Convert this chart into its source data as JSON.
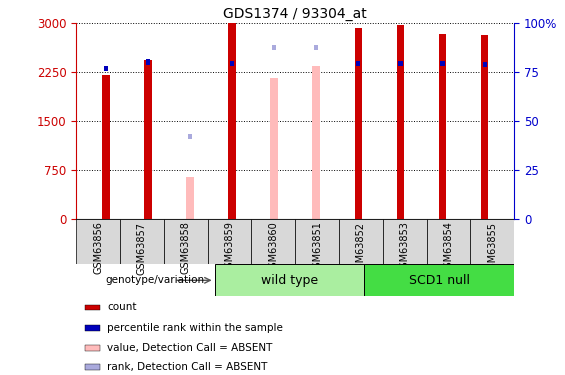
{
  "title": "GDS1374 / 93304_at",
  "samples": [
    "GSM63856",
    "GSM63857",
    "GSM63858",
    "GSM63859",
    "GSM63860",
    "GSM63851",
    "GSM63852",
    "GSM63853",
    "GSM63854",
    "GSM63855"
  ],
  "count_values": [
    2200,
    2430,
    null,
    2990,
    null,
    null,
    2920,
    2960,
    2820,
    2810
  ],
  "rank_values": [
    2300,
    2400,
    null,
    2380,
    null,
    null,
    2370,
    2370,
    2370,
    2360
  ],
  "absent_value_values": [
    null,
    null,
    640,
    null,
    2160,
    2340,
    null,
    null,
    null,
    null
  ],
  "absent_rank_values": [
    null,
    null,
    1260,
    null,
    2620,
    2620,
    null,
    null,
    null,
    null
  ],
  "ylim_left": [
    0,
    3000
  ],
  "ylim_right": [
    0,
    100
  ],
  "yticks_left": [
    0,
    750,
    1500,
    2250,
    3000
  ],
  "yticks_right": [
    0,
    25,
    50,
    75,
    100
  ],
  "left_axis_color": "#cc0000",
  "right_axis_color": "#0000cc",
  "bar_width": 0.18,
  "rank_bar_width": 0.1,
  "count_color": "#cc0000",
  "rank_color": "#0000bb",
  "absent_value_color": "#ffbbbb",
  "absent_rank_color": "#aaaadd",
  "legend_items": [
    {
      "label": "count",
      "color": "#cc0000"
    },
    {
      "label": "percentile rank within the sample",
      "color": "#0000bb"
    },
    {
      "label": "value, Detection Call = ABSENT",
      "color": "#ffbbbb"
    },
    {
      "label": "rank, Detection Call = ABSENT",
      "color": "#aaaadd"
    }
  ],
  "wt_color": "#aaeea0",
  "scd1_color": "#44dd44",
  "wt_label": "wild type",
  "scd1_label": "SCD1 null",
  "genotype_label": "genotype/variation"
}
